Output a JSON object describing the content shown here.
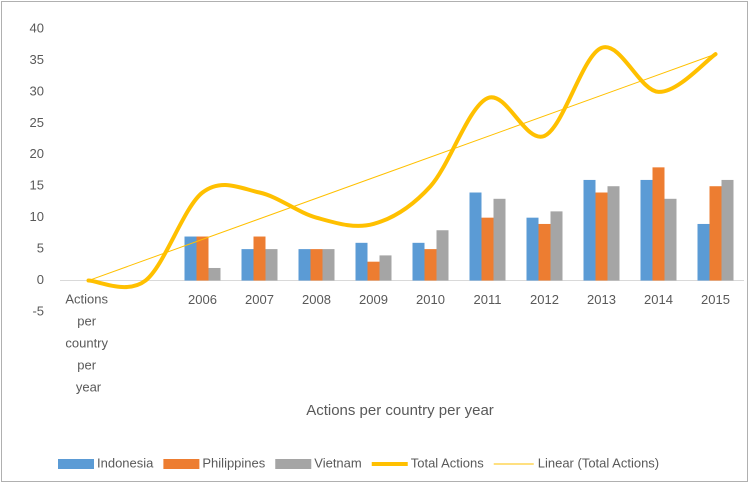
{
  "chart_data": {
    "type": "bar",
    "x_label": "Actions per country per year",
    "categories": [
      "Actions per country per year",
      null,
      "2006",
      "2007",
      "2008",
      "2009",
      "2010",
      "2011",
      "2012",
      "2013",
      "2014",
      "2015"
    ],
    "series": [
      {
        "name": "Indonesia",
        "color": "#5b9bd5",
        "type": "bar",
        "values": [
          null,
          null,
          7,
          5,
          5,
          6,
          6,
          14,
          10,
          16,
          16,
          9
        ]
      },
      {
        "name": "Philippines",
        "color": "#ed7d31",
        "type": "bar",
        "values": [
          null,
          null,
          7,
          7,
          5,
          3,
          5,
          10,
          9,
          14,
          18,
          15
        ]
      },
      {
        "name": "Vietnam",
        "color": "#a5a5a5",
        "type": "bar",
        "values": [
          null,
          null,
          2,
          5,
          5,
          4,
          8,
          13,
          11,
          15,
          13,
          16
        ]
      },
      {
        "name": "Total Actions",
        "color": "#ffc000",
        "type": "line",
        "smooth": true,
        "values": [
          0,
          0,
          14,
          14,
          10,
          9,
          15,
          29,
          23,
          37,
          30,
          36
        ]
      }
    ],
    "trendline": {
      "name": "Linear (Total Actions)",
      "color": "#ffc000",
      "start": 0,
      "end": 36
    },
    "ylim": [
      -5,
      40
    ],
    "yticks": [
      -5,
      0,
      5,
      10,
      15,
      20,
      25,
      30,
      35,
      40
    ],
    "grid": false,
    "legend": "bottom"
  }
}
